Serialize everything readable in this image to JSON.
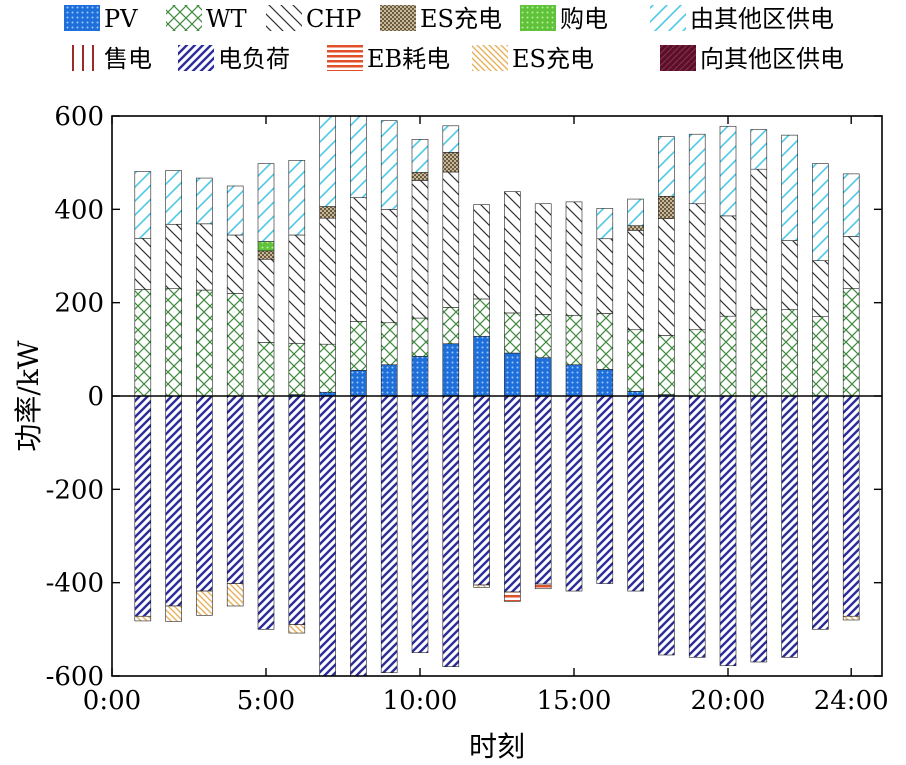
{
  "chart_data": {
    "type": "bar",
    "stacked": true,
    "xlabel": "时刻",
    "ylabel": "功率/kW",
    "ylim": [
      -600,
      600
    ],
    "yticks": [
      -600,
      -400,
      -200,
      0,
      200,
      400,
      600
    ],
    "xlim": [
      0,
      25
    ],
    "xticks": [
      0,
      5,
      10,
      15,
      20,
      24
    ],
    "xtick_labels": [
      "0:00",
      "5:00",
      "10:00",
      "15:00",
      "20:00",
      "24:00"
    ],
    "grid": false,
    "legend_position": "top",
    "x": [
      1,
      2,
      3,
      4,
      5,
      6,
      7,
      8,
      9,
      10,
      11,
      12,
      13,
      14,
      15,
      16,
      17,
      18,
      19,
      20,
      21,
      22,
      23,
      24
    ],
    "series": [
      {
        "name": "PV",
        "side": "positive",
        "color": "#1e6fd9",
        "pattern": "dots",
        "values": [
          0,
          0,
          0,
          0,
          0,
          3,
          8,
          55,
          67,
          85,
          112,
          128,
          92,
          82,
          67,
          57,
          10,
          3,
          0,
          0,
          0,
          0,
          0,
          0
        ]
      },
      {
        "name": "WT",
        "side": "positive",
        "color": "#3f8a3f",
        "pattern": "cross",
        "values": [
          228,
          230,
          227,
          220,
          115,
          110,
          103,
          105,
          90,
          82,
          78,
          80,
          86,
          93,
          106,
          120,
          132,
          127,
          142,
          171,
          186,
          185,
          170,
          230
        ]
      },
      {
        "name": "CHP",
        "side": "positive",
        "color": "#333333",
        "pattern": "diag",
        "values": [
          110,
          138,
          142,
          125,
          178,
          232,
          270,
          265,
          243,
          295,
          290,
          202,
          260,
          237,
          243,
          160,
          213,
          250,
          270,
          215,
          300,
          148,
          120,
          112
        ]
      },
      {
        "name": "ES充电",
        "side": "positive",
        "color": "#7a6a4f",
        "pattern": "checker",
        "values": [
          0,
          0,
          0,
          0,
          18,
          0,
          25,
          0,
          0,
          17,
          42,
          0,
          0,
          0,
          0,
          0,
          10,
          48,
          0,
          0,
          0,
          0,
          0,
          0
        ]
      },
      {
        "name": "购电",
        "side": "positive",
        "color": "#6fd24a",
        "pattern": "dots",
        "values": [
          0,
          0,
          0,
          0,
          20,
          0,
          0,
          0,
          0,
          0,
          0,
          0,
          0,
          0,
          0,
          0,
          0,
          0,
          0,
          0,
          0,
          0,
          0,
          0
        ]
      },
      {
        "name": "由其他区供电",
        "side": "positive",
        "color": "#4cc8e8",
        "pattern": "diag-cyan",
        "values": [
          143,
          115,
          98,
          105,
          167,
          160,
          194,
          175,
          190,
          71,
          57,
          0,
          0,
          0,
          0,
          65,
          57,
          128,
          149,
          192,
          85,
          226,
          208,
          134
        ]
      },
      {
        "name": "售电",
        "side": "negative",
        "color": "#9b2a2a",
        "pattern": "vlines",
        "values": [
          0,
          0,
          0,
          0,
          0,
          0,
          0,
          0,
          0,
          0,
          0,
          0,
          0,
          0,
          0,
          0,
          0,
          0,
          0,
          0,
          0,
          0,
          0,
          0
        ]
      },
      {
        "name": "电负荷",
        "side": "negative",
        "color": "#2d2d9a",
        "pattern": "diag-thick",
        "values": [
          -472,
          -450,
          -418,
          -402,
          -500,
          -490,
          -600,
          -600,
          -593,
          -550,
          -580,
          -405,
          -420,
          -403,
          -418,
          -402,
          -418,
          -555,
          -560,
          -578,
          -570,
          -560,
          -500,
          -472
        ]
      },
      {
        "name": "EB耗电",
        "side": "negative",
        "color": "#e0502a",
        "pattern": "hlines",
        "values": [
          0,
          0,
          0,
          0,
          0,
          0,
          0,
          0,
          0,
          0,
          0,
          0,
          -20,
          -10,
          0,
          0,
          0,
          0,
          0,
          0,
          0,
          0,
          0,
          0
        ]
      },
      {
        "name": "ES充电",
        "side": "negative",
        "color": "#e8b05a",
        "pattern": "diag-orange",
        "values": [
          -10,
          -33,
          -52,
          -48,
          0,
          -18,
          0,
          0,
          0,
          0,
          0,
          -5,
          0,
          0,
          0,
          0,
          0,
          0,
          0,
          0,
          0,
          0,
          0,
          -8
        ]
      },
      {
        "name": "向其他区供电",
        "side": "negative",
        "color": "#5a1028",
        "pattern": "diag-dark",
        "values": [
          0,
          0,
          0,
          0,
          0,
          0,
          0,
          0,
          0,
          0,
          0,
          0,
          0,
          0,
          0,
          0,
          0,
          0,
          0,
          0,
          0,
          0,
          0,
          0
        ]
      }
    ]
  }
}
